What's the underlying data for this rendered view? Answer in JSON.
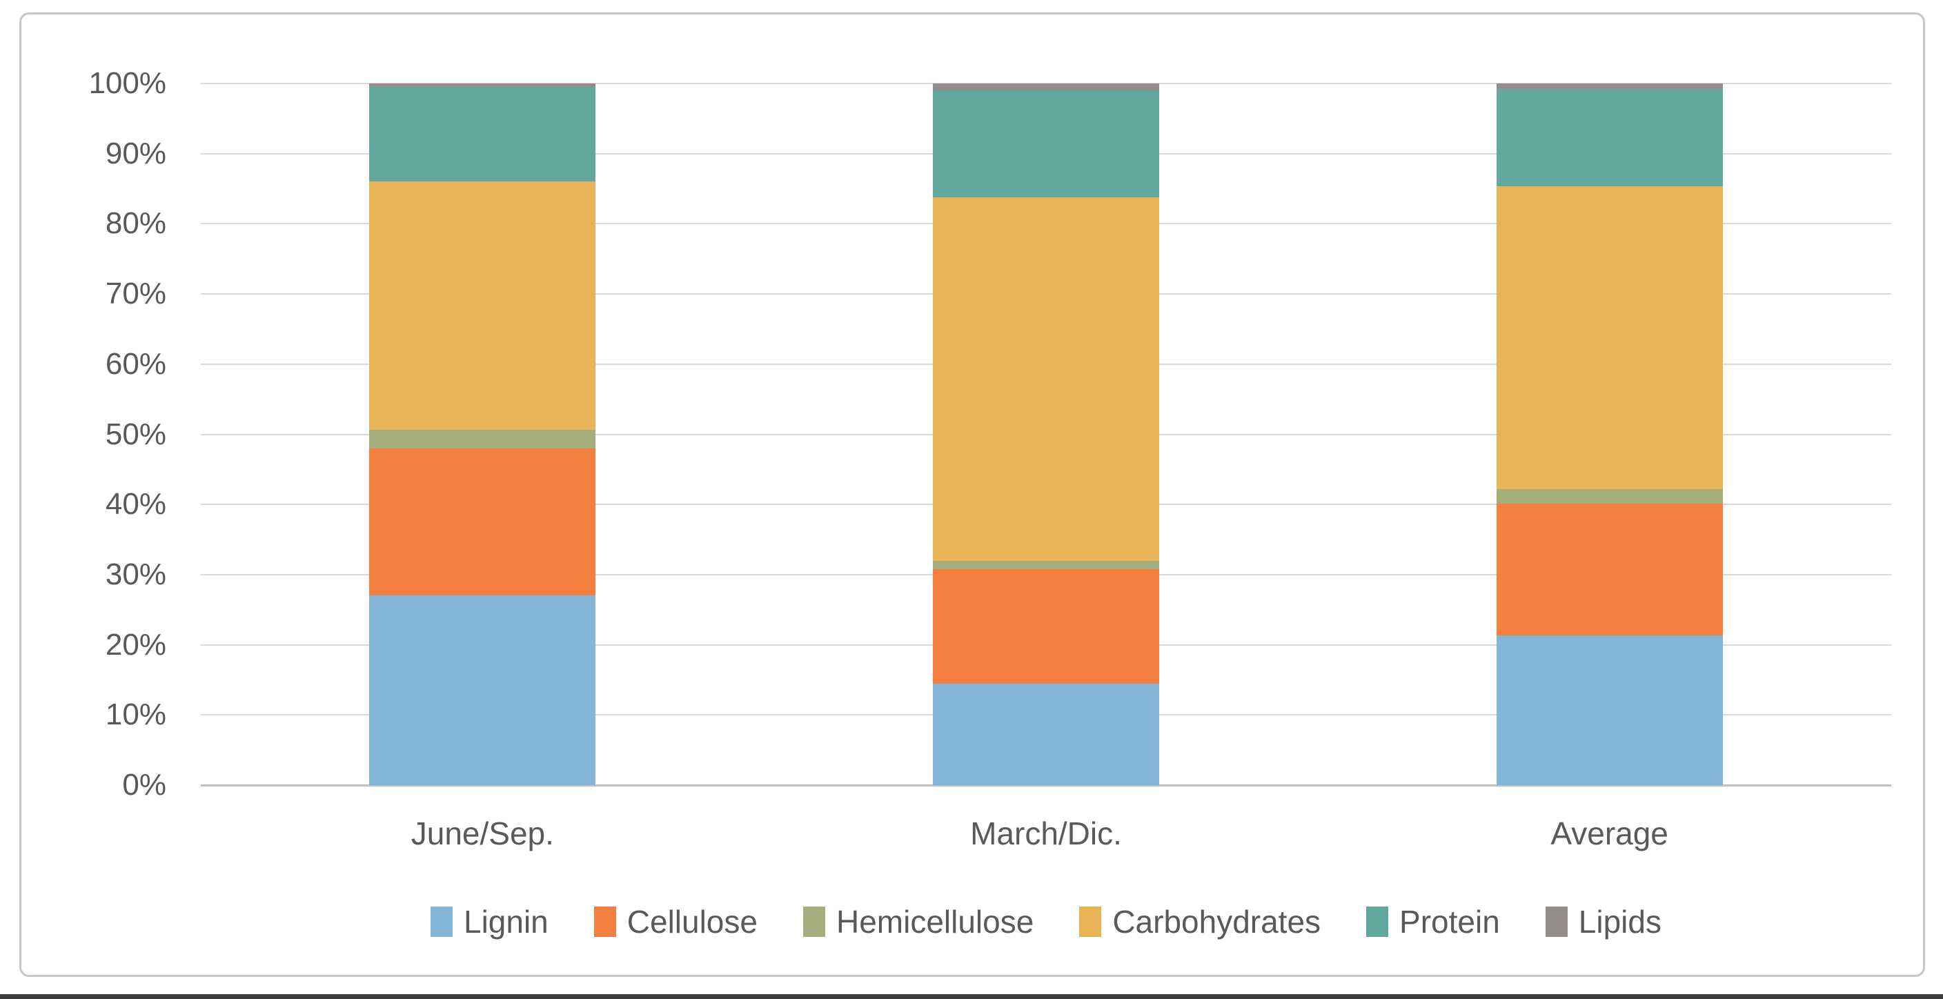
{
  "chart_data": {
    "type": "bar",
    "stacked": true,
    "percent": true,
    "title": "",
    "xlabel": "",
    "ylabel": "",
    "categories": [
      "June/Sep.",
      "March/Dic.",
      "Average"
    ],
    "series": [
      {
        "name": "Lignin",
        "color": "#85B5D6",
        "values": [
          27.0,
          14.5,
          21.3
        ]
      },
      {
        "name": "Cellulose",
        "color": "#F57F3E",
        "values": [
          21.0,
          16.3,
          18.8
        ]
      },
      {
        "name": "Hemicellulose",
        "color": "#A4AD7C",
        "values": [
          2.6,
          1.2,
          2.1
        ]
      },
      {
        "name": "Carbohydrates",
        "color": "#E7B457",
        "values": [
          35.4,
          51.8,
          43.2
        ]
      },
      {
        "name": "Protein",
        "color": "#63A89E",
        "values": [
          13.5,
          15.2,
          13.8
        ]
      },
      {
        "name": "Lipids",
        "color": "#968C8C",
        "values": [
          0.5,
          1.0,
          0.8
        ]
      }
    ],
    "ylim": [
      0,
      100
    ],
    "yticks": [
      "0%",
      "10%",
      "20%",
      "30%",
      "40%",
      "50%",
      "60%",
      "70%",
      "80%",
      "90%",
      "100%"
    ],
    "grid": true,
    "legend_position": "bottom"
  },
  "colors": {
    "background": "#ffffff",
    "frame_border": "#c7c7c7",
    "gridline": "#d9d9d9",
    "baseline": "#bfbfbf",
    "axis_text": "#595959",
    "page_rule": "#3d3d3d"
  }
}
